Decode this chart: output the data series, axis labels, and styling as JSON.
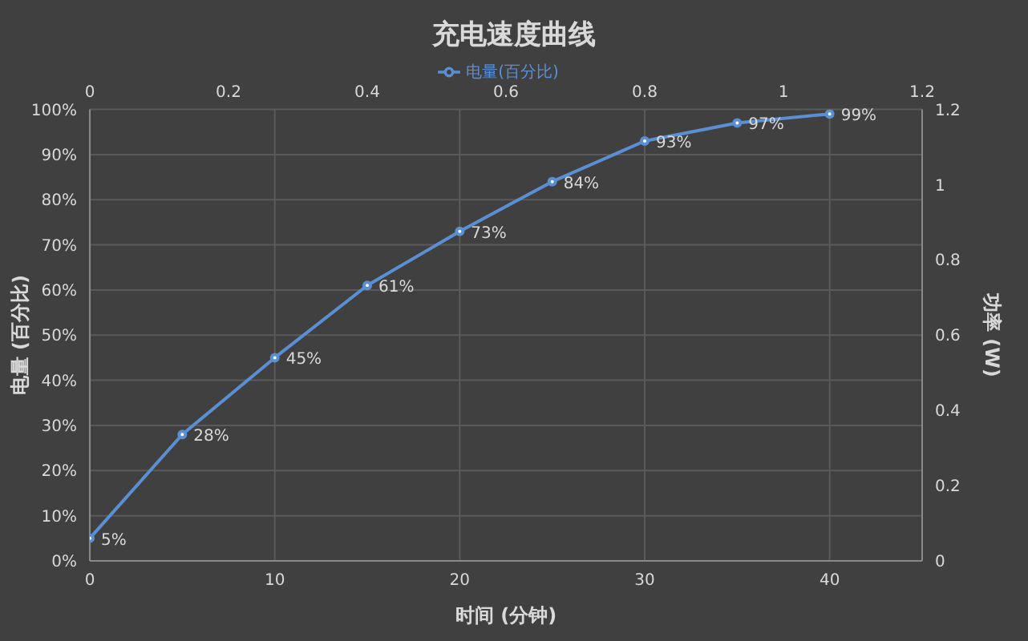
{
  "chart_data": {
    "type": "line",
    "title": "充电速度曲线",
    "xlabel": "时间 (分钟)",
    "ylabel": "电量 (百分比)",
    "y2label": "功率 (W)",
    "x": [
      0,
      5,
      10,
      15,
      20,
      25,
      30,
      35,
      40
    ],
    "series": [
      {
        "name": "电量(百分比)",
        "color": "#5b8fd4",
        "values": [
          5,
          28,
          45,
          61,
          73,
          84,
          93,
          97,
          99
        ],
        "value_labels": [
          "5%",
          "28%",
          "45%",
          "61%",
          "73%",
          "84%",
          "93%",
          "97%",
          "99%"
        ]
      }
    ],
    "xlim": [
      0,
      45
    ],
    "xticks": [
      0,
      10,
      20,
      30,
      40
    ],
    "ylim": [
      0,
      100
    ],
    "yticks": [
      {
        "value": 0,
        "label": "0%"
      },
      {
        "value": 10,
        "label": "10%"
      },
      {
        "value": 20,
        "label": "20%"
      },
      {
        "value": 30,
        "label": "30%"
      },
      {
        "value": 40,
        "label": "40%"
      },
      {
        "value": 50,
        "label": "50%"
      },
      {
        "value": 60,
        "label": "60%"
      },
      {
        "value": 70,
        "label": "70%"
      },
      {
        "value": 80,
        "label": "80%"
      },
      {
        "value": 90,
        "label": "90%"
      },
      {
        "value": 100,
        "label": "100%"
      }
    ],
    "x2lim": [
      0,
      1.2
    ],
    "x2ticks": [
      0,
      0.2,
      0.4,
      0.6,
      0.8,
      1,
      1.2
    ],
    "y2lim": [
      0,
      1.2
    ],
    "y2ticks": [
      0,
      0.2,
      0.4,
      0.6,
      0.8,
      1,
      1.2
    ],
    "grid": true,
    "legend": "top",
    "marker": "circle",
    "line_style": "solid"
  }
}
